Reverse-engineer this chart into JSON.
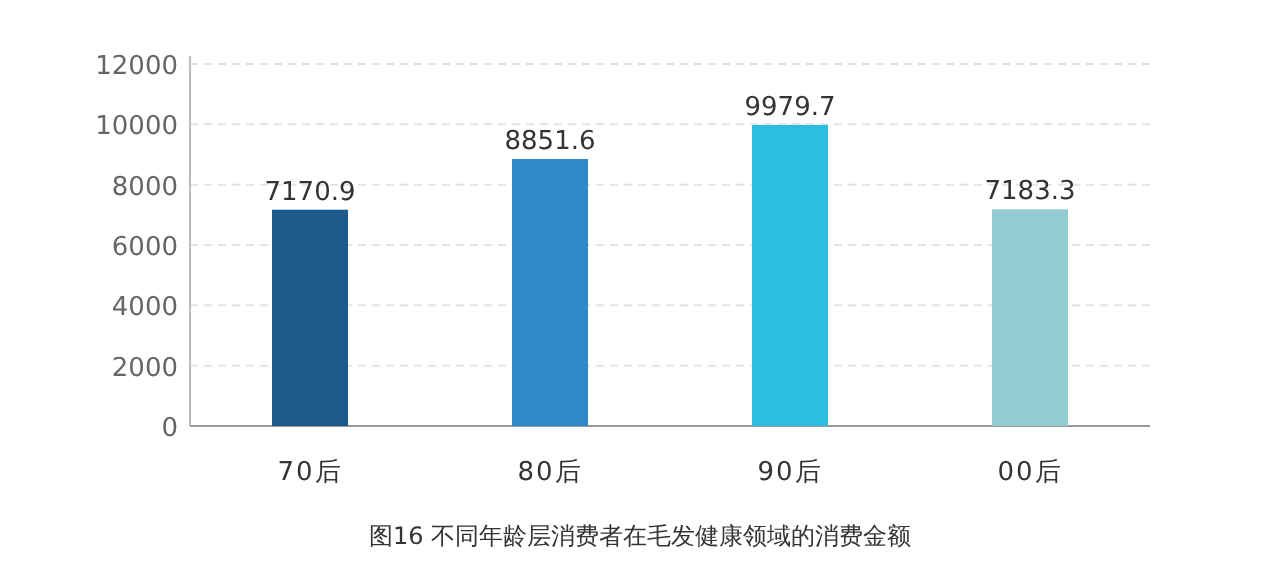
{
  "chart_data": {
    "type": "bar",
    "title": "图16 不同年龄层消费者在毛发健康领域的消费金额",
    "categories": [
      "70后",
      "80后",
      "90后",
      "00后"
    ],
    "values": [
      7170.9,
      8851.6,
      9979.7,
      7183.3
    ],
    "colors": [
      "#1d5a8c",
      "#2f88c9",
      "#2cbde2",
      "#93cdd2"
    ],
    "ylim": [
      0,
      12000
    ],
    "yticks": [
      0,
      2000,
      4000,
      6000,
      8000,
      10000,
      12000
    ],
    "grid": "y",
    "data_labels": true
  }
}
